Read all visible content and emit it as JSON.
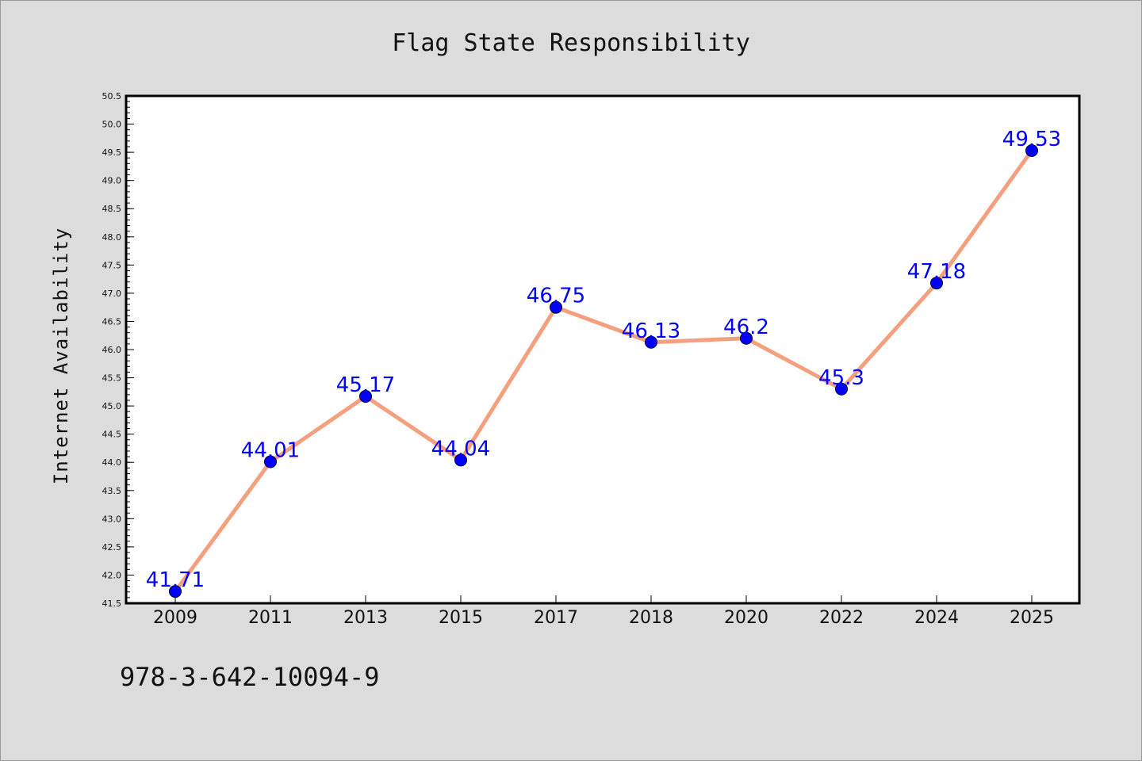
{
  "chart_data": {
    "type": "line",
    "title": "Flag State Responsibility",
    "xlabel": "",
    "ylabel": "Internet Availability",
    "categories": [
      "2009",
      "2011",
      "2013",
      "2015",
      "2017",
      "2018",
      "2020",
      "2022",
      "2024",
      "2025"
    ],
    "series": [
      {
        "values": [
          41.71,
          44.01,
          45.17,
          44.04,
          46.75,
          46.13,
          46.2,
          45.3,
          47.18,
          49.53
        ],
        "labels": [
          "41.71",
          "44.01",
          "45.17",
          "44.04",
          "46.75",
          "46.13",
          "46.2",
          "45.3",
          "47.18",
          "49.53"
        ],
        "line_color": "#f4a07e",
        "marker_color": "#0000ff"
      }
    ],
    "ylim": [
      41.5,
      50.5
    ],
    "yticks": [
      "41.5",
      "42.0",
      "42.5",
      "43.0",
      "43.5",
      "44.0",
      "44.5",
      "45.0",
      "45.5",
      "46.0",
      "46.5",
      "47.0",
      "47.5",
      "48.0",
      "48.5",
      "49.0",
      "49.5",
      "50.0",
      "50.5"
    ],
    "grid": false,
    "legend": "none"
  },
  "footer": {
    "isbn": "978-3-642-10094-9"
  },
  "colors": {
    "background": "#dcdcdc",
    "plot_area": "#ffffff",
    "label_text": "#0000ff"
  }
}
